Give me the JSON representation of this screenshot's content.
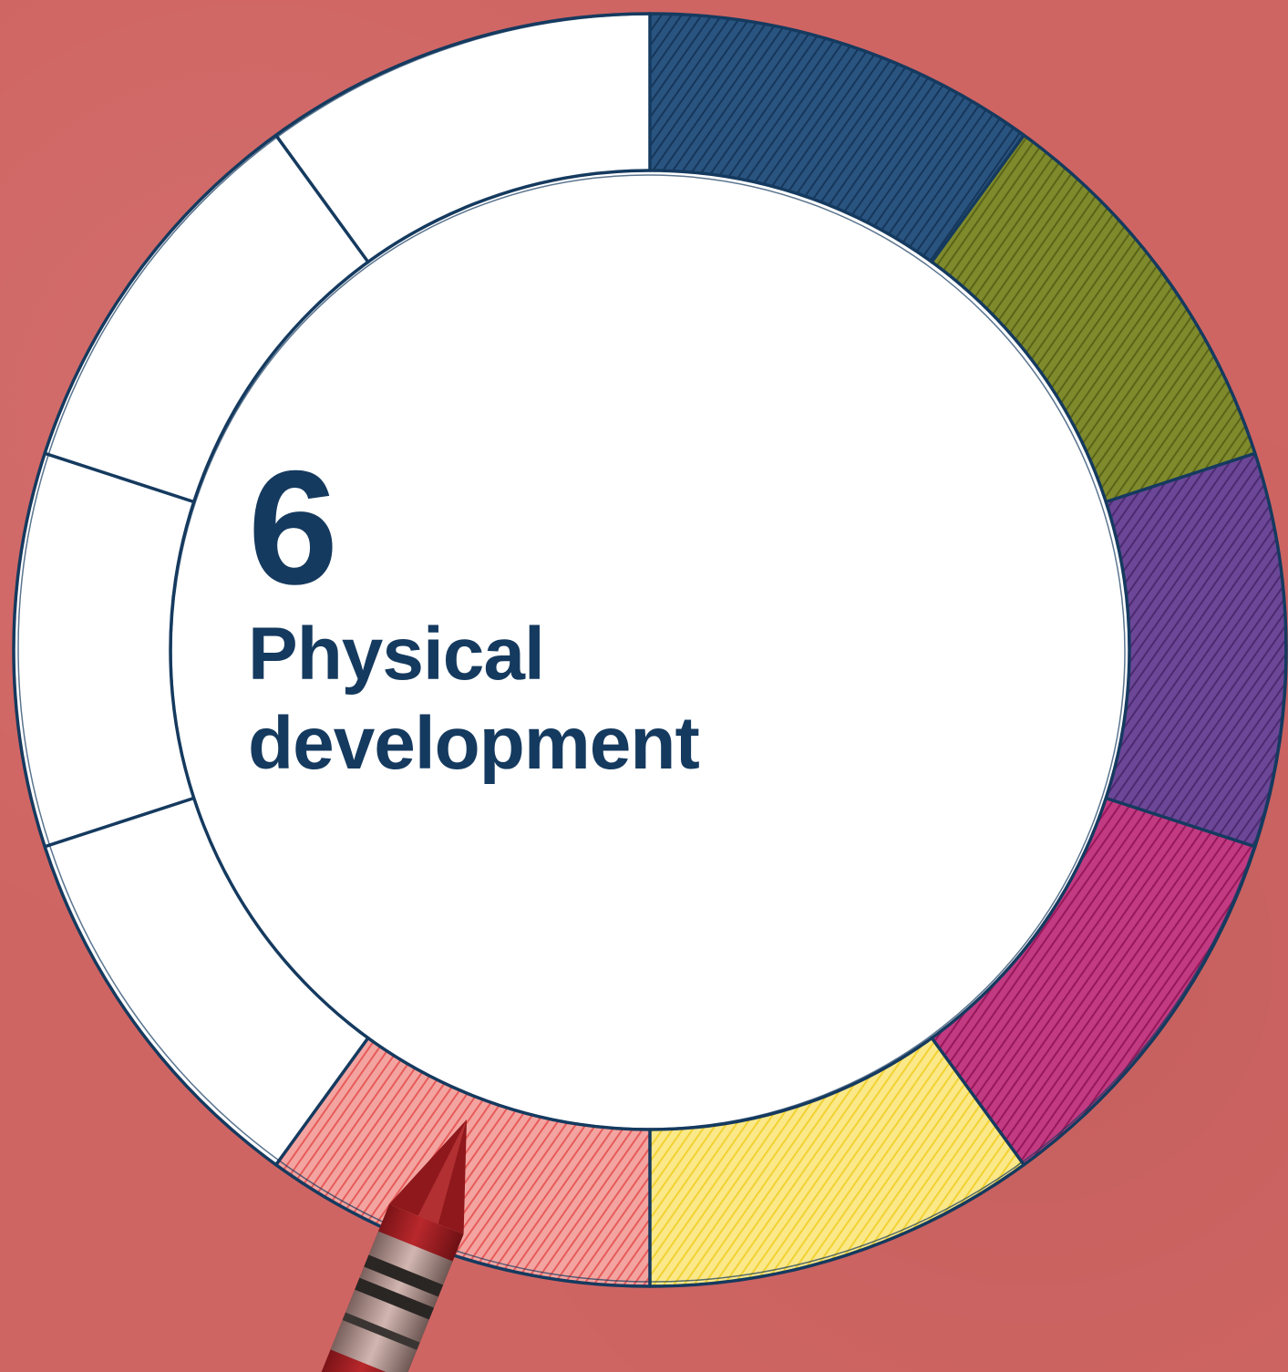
{
  "chapter": {
    "number": "6",
    "title_line1": "Physical",
    "title_line2": "development"
  },
  "wheel": {
    "segment_count": 10,
    "colors": {
      "background": "#cf6563",
      "outline": "#153a5f",
      "segment_blue": "#1f4670",
      "segment_olive": "#6f7a22",
      "segment_purple": "#5e3a85",
      "segment_magenta": "#b3246f",
      "segment_yellow": "#f3d84a",
      "segment_red": "#e8605e",
      "segment_empty": "#ffffff",
      "crayon": "#a51e22"
    }
  }
}
